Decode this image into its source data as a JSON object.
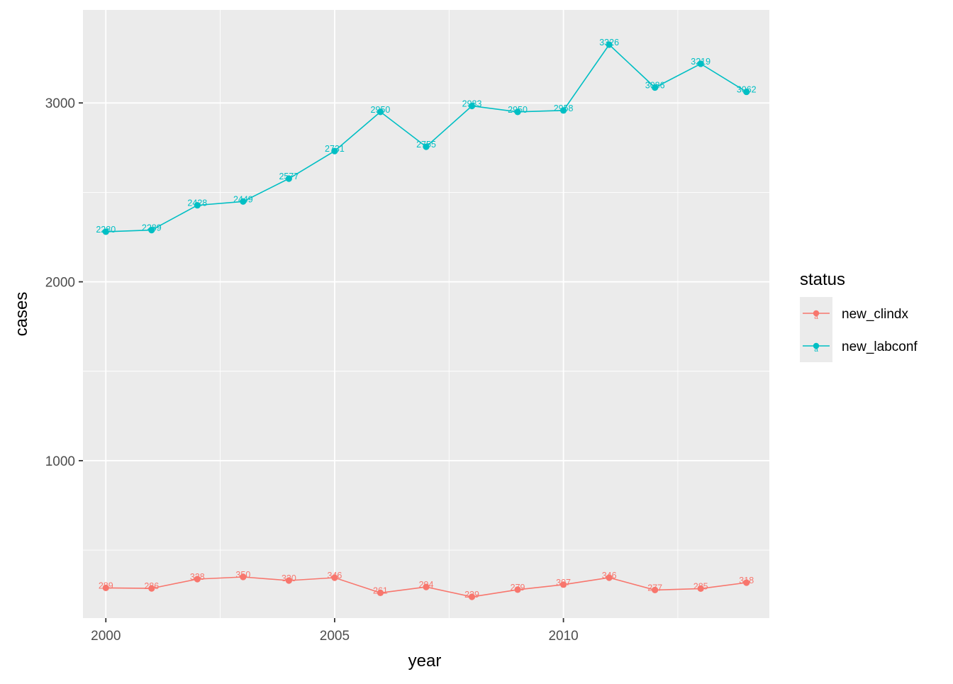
{
  "chart_data": {
    "type": "line",
    "xlabel": "year",
    "ylabel": "cases",
    "xlim": [
      1999.5,
      2014.5
    ],
    "ylim": [
      120,
      3520
    ],
    "x_ticks": [
      2000,
      2005,
      2010
    ],
    "x_minor": [
      2002.5,
      2007.5,
      2012.5
    ],
    "y_ticks": [
      1000,
      2000,
      3000
    ],
    "y_minor": [
      500,
      1500,
      2500
    ],
    "x_tick_labels": [
      "2000",
      "2005",
      "2010"
    ],
    "y_tick_labels": [
      "1000",
      "2000",
      "3000"
    ],
    "grid": true,
    "panel_background": "#ebebeb",
    "legend": {
      "title": "status",
      "placement": "right",
      "background": "#ebebeb"
    },
    "x": [
      2000,
      2001,
      2002,
      2003,
      2004,
      2005,
      2006,
      2007,
      2008,
      2009,
      2010,
      2011,
      2012,
      2013,
      2014
    ],
    "series": [
      {
        "name": "new_clindx",
        "color": "#f8766d",
        "values": [
          289,
          286,
          338,
          350,
          330,
          346,
          261,
          294,
          239,
          279,
          307,
          346,
          277,
          285,
          318
        ]
      },
      {
        "name": "new_labconf",
        "color": "#00bfc4",
        "values": [
          2280,
          2289,
          2428,
          2449,
          2577,
          2731,
          2950,
          2755,
          2983,
          2950,
          2958,
          3326,
          3086,
          3219,
          3062
        ]
      }
    ]
  }
}
